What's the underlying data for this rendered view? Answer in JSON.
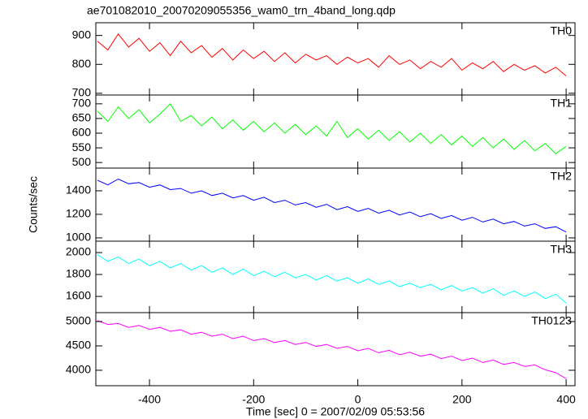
{
  "title": "ae701082010_20070209055356_wam0_trn_4band_long.qdp",
  "xlabel": "Time [sec] 0 = 2007/02/09 05:53:56",
  "ylabel": "Counts/sec",
  "chart_data": [
    {
      "type": "line",
      "x": [
        -500,
        -480,
        -460,
        -440,
        -420,
        -400,
        -380,
        -360,
        -340,
        -320,
        -300,
        -280,
        -260,
        -240,
        -220,
        -200,
        -180,
        -160,
        -140,
        -120,
        -100,
        -80,
        -60,
        -40,
        -20,
        0,
        20,
        40,
        60,
        80,
        100,
        120,
        140,
        160,
        180,
        200,
        220,
        240,
        260,
        280,
        300,
        320,
        340,
        360,
        380,
        400
      ],
      "series": [
        {
          "name": "TH0",
          "color": "#ff0000",
          "values": [
            880,
            850,
            905,
            860,
            890,
            845,
            875,
            830,
            880,
            840,
            865,
            825,
            855,
            815,
            850,
            820,
            845,
            810,
            840,
            805,
            835,
            815,
            830,
            800,
            825,
            805,
            820,
            790,
            830,
            800,
            815,
            785,
            810,
            790,
            820,
            780,
            805,
            785,
            810,
            775,
            800,
            780,
            795,
            770,
            790,
            760
          ]
        }
      ],
      "xlim": [
        -503,
        417
      ],
      "xticks": [
        -400,
        -200,
        0,
        200,
        400
      ],
      "ylim": [
        694,
        944
      ],
      "yticks": [
        700,
        800,
        900
      ]
    },
    {
      "type": "line",
      "x": [
        -500,
        -480,
        -460,
        -440,
        -420,
        -400,
        -380,
        -360,
        -340,
        -320,
        -300,
        -280,
        -260,
        -240,
        -220,
        -200,
        -180,
        -160,
        -140,
        -120,
        -100,
        -80,
        -60,
        -40,
        -20,
        0,
        20,
        40,
        60,
        80,
        100,
        120,
        140,
        160,
        180,
        200,
        220,
        240,
        260,
        280,
        300,
        320,
        340,
        360,
        380,
        400
      ],
      "series": [
        {
          "name": "TH1",
          "color": "#00ff00",
          "values": [
            675,
            640,
            690,
            650,
            680,
            635,
            665,
            700,
            640,
            660,
            625,
            655,
            615,
            645,
            610,
            640,
            605,
            635,
            600,
            630,
            595,
            625,
            590,
            640,
            585,
            615,
            580,
            610,
            575,
            605,
            570,
            600,
            565,
            595,
            560,
            590,
            555,
            585,
            550,
            580,
            545,
            575,
            540,
            565,
            530,
            555
          ]
        }
      ],
      "xlim": [
        -503,
        417
      ],
      "xticks": [
        -400,
        -200,
        0,
        200,
        400
      ],
      "ylim": [
        481,
        730
      ],
      "yticks": [
        500,
        550,
        600,
        650,
        700
      ]
    },
    {
      "type": "line",
      "x": [
        -500,
        -480,
        -460,
        -440,
        -420,
        -400,
        -380,
        -360,
        -340,
        -320,
        -300,
        -280,
        -260,
        -240,
        -220,
        -200,
        -180,
        -160,
        -140,
        -120,
        -100,
        -80,
        -60,
        -40,
        -20,
        0,
        20,
        40,
        60,
        80,
        100,
        120,
        140,
        160,
        180,
        200,
        220,
        240,
        260,
        280,
        300,
        320,
        340,
        360,
        380,
        400
      ],
      "series": [
        {
          "name": "TH2",
          "color": "#0000ff",
          "values": [
            1490,
            1450,
            1500,
            1460,
            1470,
            1430,
            1450,
            1410,
            1420,
            1380,
            1400,
            1360,
            1380,
            1340,
            1360,
            1320,
            1345,
            1300,
            1320,
            1280,
            1300,
            1260,
            1285,
            1240,
            1265,
            1225,
            1250,
            1210,
            1235,
            1195,
            1220,
            1180,
            1205,
            1165,
            1190,
            1150,
            1175,
            1135,
            1160,
            1120,
            1140,
            1100,
            1120,
            1080,
            1095,
            1050
          ]
        }
      ],
      "xlim": [
        -503,
        417
      ],
      "xticks": [
        -400,
        -200,
        0,
        200,
        400
      ],
      "ylim": [
        972,
        1593
      ],
      "yticks": [
        1000,
        1200,
        1400
      ]
    },
    {
      "type": "line",
      "x": [
        -500,
        -480,
        -460,
        -440,
        -420,
        -400,
        -380,
        -360,
        -340,
        -320,
        -300,
        -280,
        -260,
        -240,
        -220,
        -200,
        -180,
        -160,
        -140,
        -120,
        -100,
        -80,
        -60,
        -40,
        -20,
        0,
        20,
        40,
        60,
        80,
        100,
        120,
        140,
        160,
        180,
        200,
        220,
        240,
        260,
        280,
        300,
        320,
        340,
        360,
        380,
        400
      ],
      "series": [
        {
          "name": "TH3",
          "color": "#00ffff",
          "values": [
            1980,
            1920,
            1960,
            1900,
            1940,
            1880,
            1920,
            1860,
            1900,
            1840,
            1880,
            1820,
            1860,
            1800,
            1850,
            1790,
            1830,
            1780,
            1820,
            1770,
            1800,
            1750,
            1790,
            1740,
            1770,
            1720,
            1760,
            1710,
            1740,
            1690,
            1720,
            1680,
            1710,
            1660,
            1700,
            1650,
            1680,
            1630,
            1670,
            1610,
            1650,
            1600,
            1640,
            1580,
            1620,
            1540
          ]
        }
      ],
      "xlim": [
        -503,
        417
      ],
      "xticks": [
        -400,
        -200,
        0,
        200,
        400
      ],
      "ylim": [
        1452,
        2104
      ],
      "yticks": [
        1600,
        1800,
        2000
      ]
    },
    {
      "type": "line",
      "x": [
        -500,
        -480,
        -460,
        -440,
        -420,
        -400,
        -380,
        -360,
        -340,
        -320,
        -300,
        -280,
        -260,
        -240,
        -220,
        -200,
        -180,
        -160,
        -140,
        -120,
        -100,
        -80,
        -60,
        -40,
        -20,
        0,
        20,
        40,
        60,
        80,
        100,
        120,
        140,
        160,
        180,
        200,
        220,
        240,
        260,
        280,
        300,
        320,
        340,
        360,
        380,
        400
      ],
      "series": [
        {
          "name": "TH0123",
          "color": "#ff00ff",
          "values": [
            5020,
            4940,
            4960,
            4880,
            4920,
            4840,
            4880,
            4800,
            4830,
            4740,
            4780,
            4700,
            4740,
            4650,
            4700,
            4610,
            4650,
            4570,
            4610,
            4530,
            4570,
            4490,
            4530,
            4450,
            4490,
            4400,
            4450,
            4360,
            4410,
            4320,
            4370,
            4290,
            4330,
            4240,
            4290,
            4200,
            4250,
            4160,
            4210,
            4120,
            4160,
            4080,
            4110,
            4010,
            3950,
            3830
          ]
        }
      ],
      "xlim": [
        -503,
        417
      ],
      "xticks": [
        -400,
        -200,
        0,
        200,
        400
      ],
      "ylim": [
        3683,
        5183
      ],
      "yticks": [
        4000,
        4500,
        5000
      ]
    }
  ]
}
